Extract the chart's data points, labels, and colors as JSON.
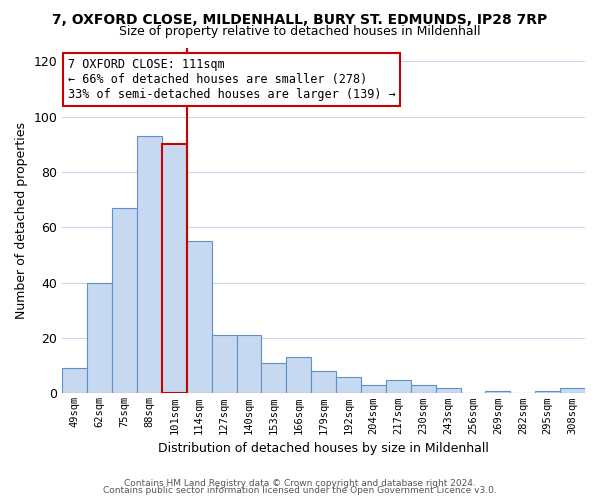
{
  "title": "7, OXFORD CLOSE, MILDENHALL, BURY ST. EDMUNDS, IP28 7RP",
  "subtitle": "Size of property relative to detached houses in Mildenhall",
  "xlabel": "Distribution of detached houses by size in Mildenhall",
  "ylabel": "Number of detached properties",
  "bar_labels": [
    "49sqm",
    "62sqm",
    "75sqm",
    "88sqm",
    "101sqm",
    "114sqm",
    "127sqm",
    "140sqm",
    "153sqm",
    "166sqm",
    "179sqm",
    "192sqm",
    "204sqm",
    "217sqm",
    "230sqm",
    "243sqm",
    "256sqm",
    "269sqm",
    "282sqm",
    "295sqm",
    "308sqm"
  ],
  "bar_values": [
    9,
    40,
    67,
    93,
    90,
    55,
    21,
    21,
    11,
    13,
    8,
    6,
    3,
    5,
    3,
    2,
    0,
    1,
    0,
    1,
    2
  ],
  "bar_color": "#c6d9f0",
  "bar_edge_color": "#6090c8",
  "highlight_bar_index": 4,
  "highlight_color": "#cc0000",
  "annotation_title": "7 OXFORD CLOSE: 111sqm",
  "annotation_line1": "← 66% of detached houses are smaller (278)",
  "annotation_line2": "33% of semi-detached houses are larger (139) →",
  "annotation_box_color": "#ffffff",
  "annotation_box_edge": "#cc0000",
  "ylim": [
    0,
    125
  ],
  "yticks": [
    0,
    20,
    40,
    60,
    80,
    100,
    120
  ],
  "footer1": "Contains HM Land Registry data © Crown copyright and database right 2024.",
  "footer2": "Contains public sector information licensed under the Open Government Licence v3.0.",
  "background_color": "#ffffff",
  "grid_color": "#c8d8ec"
}
